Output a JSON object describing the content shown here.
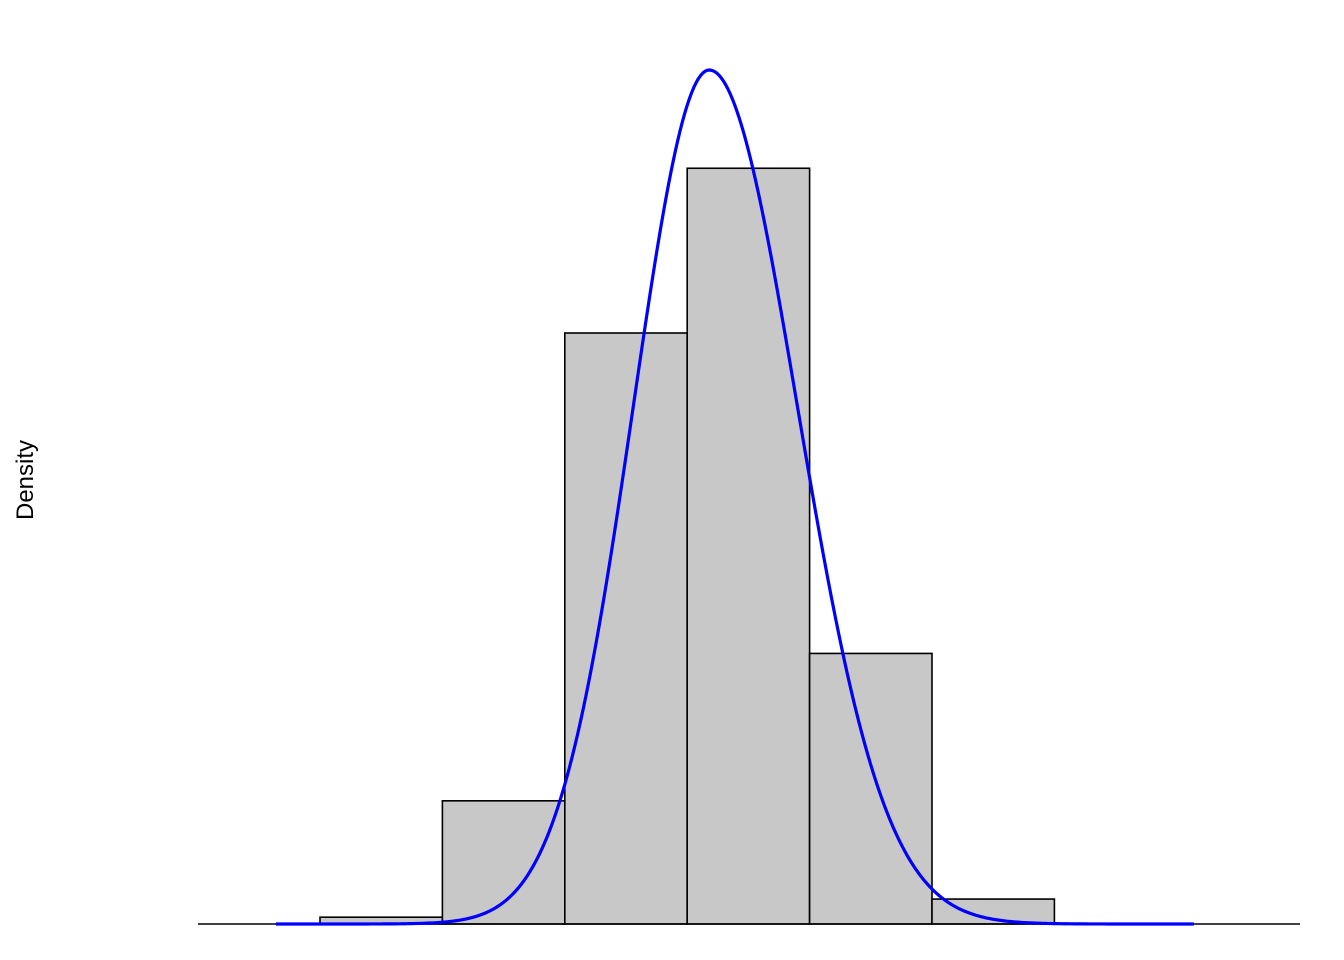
{
  "chart_data": {
    "type": "bar",
    "subtype": "histogram-with-density-curve",
    "title": "",
    "xlabel": "",
    "ylabel": "Density",
    "axes_drawn": false,
    "grid": false,
    "bins": [
      {
        "start": 0,
        "end": 1,
        "density": 0.009
      },
      {
        "start": 1,
        "end": 2,
        "density": 0.163
      },
      {
        "start": 2,
        "end": 3,
        "density": 0.782
      },
      {
        "start": 3,
        "end": 4,
        "density": 1.0
      },
      {
        "start": 4,
        "end": 5,
        "density": 0.358
      },
      {
        "start": 5,
        "end": 6,
        "density": 0.033
      }
    ],
    "density_curve": {
      "color": "#0000ff",
      "x_range": [
        -0.36,
        7.14
      ],
      "peak_x": 3.18,
      "peak_density": 1.13,
      "sd_left": 0.62,
      "sd_right": 0.72
    },
    "xlim": [
      -1,
      8.8
    ],
    "ylim": [
      0,
      1.13
    ],
    "colors": {
      "bar_fill": "#c8c8c8",
      "bar_stroke": "#000000",
      "curve": "#0000ff",
      "baseline": "#000000"
    }
  }
}
